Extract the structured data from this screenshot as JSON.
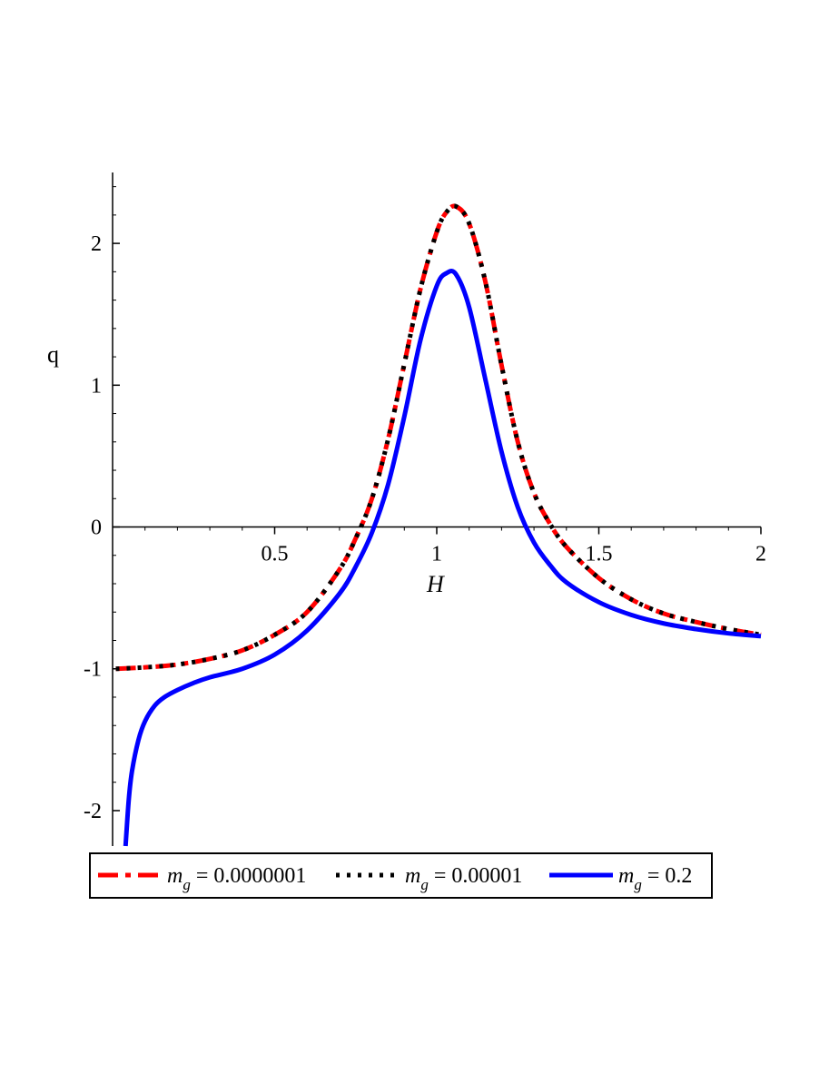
{
  "chart_data": {
    "type": "line",
    "xlabel": "H",
    "ylabel": "q",
    "xlim": [
      0,
      2
    ],
    "ylim": [
      -2.25,
      2.5
    ],
    "x_ticks": [
      {
        "value": 0.5,
        "label": "0.5"
      },
      {
        "value": 1,
        "label": "1"
      },
      {
        "value": 1.5,
        "label": "1.5"
      },
      {
        "value": 2,
        "label": "2"
      }
    ],
    "y_ticks": [
      {
        "value": -2,
        "label": "-2"
      },
      {
        "value": -1,
        "label": "-1"
      },
      {
        "value": 0,
        "label": "0"
      },
      {
        "value": 1,
        "label": "1"
      },
      {
        "value": 2,
        "label": "2"
      }
    ],
    "grid": false,
    "legend_position": "bottom",
    "series": [
      {
        "name_var": "m",
        "name_sub": "g",
        "name_rest": " = 0.0000001",
        "color": "#ff0000",
        "style": "dash-dot",
        "x": [
          0.01,
          0.1,
          0.2,
          0.3,
          0.4,
          0.5,
          0.6,
          0.7,
          0.75,
          0.8,
          0.85,
          0.9,
          0.95,
          1.0,
          1.03,
          1.06,
          1.1,
          1.15,
          1.2,
          1.25,
          1.3,
          1.35,
          1.4,
          1.5,
          1.6,
          1.7,
          1.8,
          1.9,
          2.0
        ],
        "y": [
          -1.0,
          -0.99,
          -0.97,
          -0.93,
          -0.87,
          -0.76,
          -0.6,
          -0.3,
          -0.08,
          0.2,
          0.62,
          1.15,
          1.68,
          2.08,
          2.22,
          2.26,
          2.14,
          1.73,
          1.14,
          0.6,
          0.24,
          0.02,
          -0.14,
          -0.36,
          -0.51,
          -0.61,
          -0.67,
          -0.72,
          -0.76
        ]
      },
      {
        "name_var": "m",
        "name_sub": "g",
        "name_rest": " = 0.00001",
        "color": "#000000",
        "style": "dot",
        "x": [
          0.01,
          0.1,
          0.2,
          0.3,
          0.4,
          0.5,
          0.6,
          0.7,
          0.75,
          0.8,
          0.85,
          0.9,
          0.95,
          1.0,
          1.03,
          1.06,
          1.1,
          1.15,
          1.2,
          1.25,
          1.3,
          1.35,
          1.4,
          1.5,
          1.6,
          1.7,
          1.8,
          1.9,
          2.0
        ],
        "y": [
          -1.0,
          -0.99,
          -0.97,
          -0.93,
          -0.87,
          -0.76,
          -0.6,
          -0.3,
          -0.08,
          0.2,
          0.62,
          1.15,
          1.68,
          2.08,
          2.22,
          2.26,
          2.14,
          1.73,
          1.14,
          0.6,
          0.24,
          0.02,
          -0.14,
          -0.36,
          -0.51,
          -0.61,
          -0.67,
          -0.72,
          -0.76
        ]
      },
      {
        "name_var": "m",
        "name_sub": "g",
        "name_rest": " = 0.2",
        "color": "#0000ff",
        "style": "solid",
        "x": [
          0.04,
          0.05,
          0.06,
          0.08,
          0.1,
          0.13,
          0.16,
          0.2,
          0.25,
          0.3,
          0.4,
          0.5,
          0.6,
          0.7,
          0.75,
          0.8,
          0.85,
          0.9,
          0.95,
          1.0,
          1.03,
          1.06,
          1.1,
          1.15,
          1.2,
          1.25,
          1.3,
          1.35,
          1.4,
          1.5,
          1.6,
          1.7,
          1.8,
          1.9,
          2.0
        ],
        "y": [
          -2.25,
          -1.92,
          -1.72,
          -1.5,
          -1.37,
          -1.26,
          -1.2,
          -1.15,
          -1.1,
          -1.06,
          -1.0,
          -0.9,
          -0.73,
          -0.47,
          -0.28,
          -0.04,
          0.3,
          0.78,
          1.32,
          1.7,
          1.79,
          1.78,
          1.55,
          1.04,
          0.53,
          0.14,
          -0.11,
          -0.27,
          -0.39,
          -0.53,
          -0.62,
          -0.68,
          -0.72,
          -0.75,
          -0.77
        ]
      }
    ]
  }
}
